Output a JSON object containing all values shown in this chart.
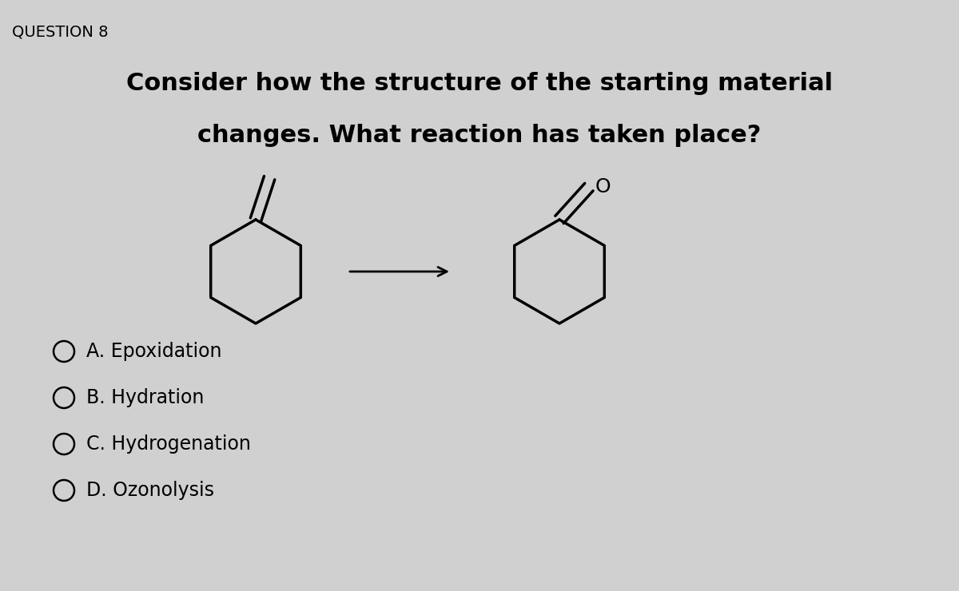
{
  "title": "QUESTION 8",
  "question_line1": "Consider how the structure of the starting material",
  "question_line2": "changes. What reaction has taken place?",
  "options": [
    "A. Epoxidation",
    "B. Hydration",
    "C. Hydrogenation",
    "D. Ozonolysis"
  ],
  "bg_color": "#d0d0d0",
  "text_color": "#000000",
  "title_fontsize": 14,
  "question_fontsize": 22,
  "option_fontsize": 17
}
